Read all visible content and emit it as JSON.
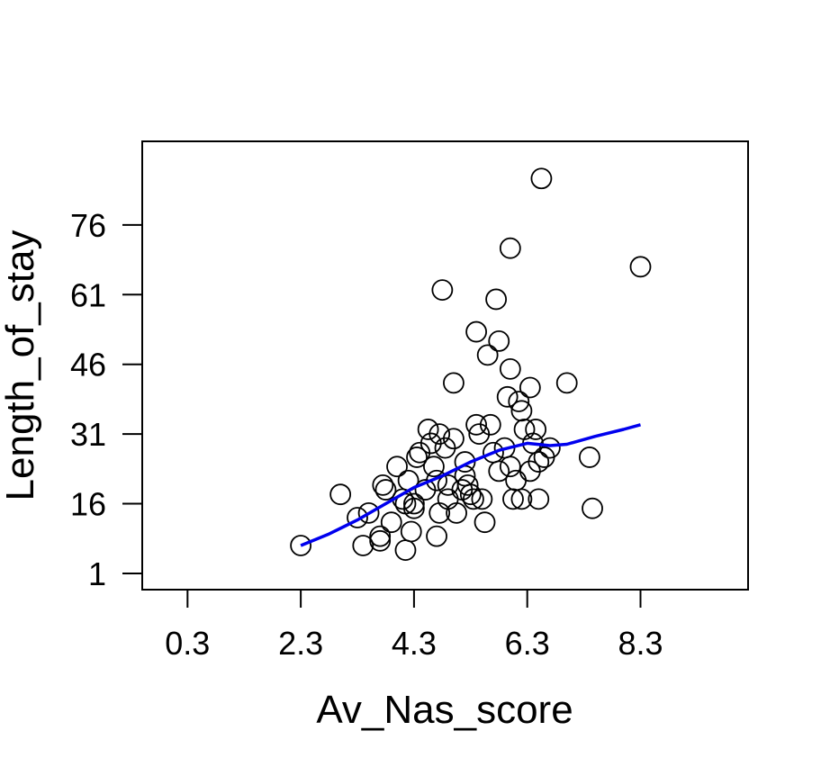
{
  "chart_data": {
    "type": "scatter",
    "xlabel": "Av_Nas_score",
    "ylabel": "Length_of_stay",
    "xlim": [
      -0.5,
      10.2
    ],
    "ylim": [
      -2.5,
      94
    ],
    "x_ticks": [
      0.3,
      2.3,
      4.3,
      6.3,
      8.3
    ],
    "x_tick_labels": [
      "0.3",
      "2.3",
      "4.3",
      "6.3",
      "8.3"
    ],
    "y_ticks": [
      1,
      16,
      31,
      46,
      61,
      76
    ],
    "y_tick_labels": [
      "1",
      "16",
      "31",
      "46",
      "61",
      "76"
    ],
    "grid": false,
    "colors": {
      "points": "#000000",
      "trend": "#0000ee",
      "axes": "#000000"
    },
    "points": [
      {
        "x": 2.3,
        "y": 7
      },
      {
        "x": 3.0,
        "y": 18
      },
      {
        "x": 3.3,
        "y": 13
      },
      {
        "x": 3.4,
        "y": 7
      },
      {
        "x": 3.5,
        "y": 14
      },
      {
        "x": 3.7,
        "y": 9
      },
      {
        "x": 3.7,
        "y": 8
      },
      {
        "x": 3.75,
        "y": 20
      },
      {
        "x": 3.8,
        "y": 19
      },
      {
        "x": 3.9,
        "y": 12
      },
      {
        "x": 4.0,
        "y": 24
      },
      {
        "x": 4.1,
        "y": 17
      },
      {
        "x": 4.15,
        "y": 16
      },
      {
        "x": 4.15,
        "y": 6
      },
      {
        "x": 4.2,
        "y": 21
      },
      {
        "x": 4.25,
        "y": 10
      },
      {
        "x": 4.3,
        "y": 16
      },
      {
        "x": 4.3,
        "y": 15
      },
      {
        "x": 4.35,
        "y": 26
      },
      {
        "x": 4.4,
        "y": 27
      },
      {
        "x": 4.5,
        "y": 19
      },
      {
        "x": 4.55,
        "y": 32
      },
      {
        "x": 4.6,
        "y": 29
      },
      {
        "x": 4.65,
        "y": 24
      },
      {
        "x": 4.7,
        "y": 21
      },
      {
        "x": 4.7,
        "y": 9
      },
      {
        "x": 4.75,
        "y": 14
      },
      {
        "x": 4.75,
        "y": 31
      },
      {
        "x": 4.8,
        "y": 62
      },
      {
        "x": 4.85,
        "y": 28
      },
      {
        "x": 4.9,
        "y": 20
      },
      {
        "x": 4.9,
        "y": 17
      },
      {
        "x": 5.0,
        "y": 30
      },
      {
        "x": 5.0,
        "y": 42
      },
      {
        "x": 5.05,
        "y": 14
      },
      {
        "x": 5.15,
        "y": 19
      },
      {
        "x": 5.2,
        "y": 25
      },
      {
        "x": 5.2,
        "y": 22
      },
      {
        "x": 5.25,
        "y": 20
      },
      {
        "x": 5.3,
        "y": 18
      },
      {
        "x": 5.35,
        "y": 17
      },
      {
        "x": 5.4,
        "y": 33
      },
      {
        "x": 5.4,
        "y": 53
      },
      {
        "x": 5.45,
        "y": 31
      },
      {
        "x": 5.5,
        "y": 17
      },
      {
        "x": 5.55,
        "y": 12
      },
      {
        "x": 5.6,
        "y": 48
      },
      {
        "x": 5.65,
        "y": 33
      },
      {
        "x": 5.7,
        "y": 27
      },
      {
        "x": 5.75,
        "y": 60
      },
      {
        "x": 5.8,
        "y": 51
      },
      {
        "x": 5.8,
        "y": 23
      },
      {
        "x": 5.9,
        "y": 28
      },
      {
        "x": 5.95,
        "y": 39
      },
      {
        "x": 6.0,
        "y": 71
      },
      {
        "x": 6.0,
        "y": 45
      },
      {
        "x": 6.0,
        "y": 24
      },
      {
        "x": 6.05,
        "y": 17
      },
      {
        "x": 6.1,
        "y": 21
      },
      {
        "x": 6.15,
        "y": 38
      },
      {
        "x": 6.2,
        "y": 36
      },
      {
        "x": 6.2,
        "y": 17
      },
      {
        "x": 6.25,
        "y": 32
      },
      {
        "x": 6.35,
        "y": 41
      },
      {
        "x": 6.35,
        "y": 23
      },
      {
        "x": 6.4,
        "y": 29
      },
      {
        "x": 6.45,
        "y": 32
      },
      {
        "x": 6.5,
        "y": 17
      },
      {
        "x": 6.5,
        "y": 25
      },
      {
        "x": 6.55,
        "y": 86
      },
      {
        "x": 6.6,
        "y": 26
      },
      {
        "x": 6.7,
        "y": 28
      },
      {
        "x": 7.0,
        "y": 42
      },
      {
        "x": 7.4,
        "y": 26
      },
      {
        "x": 7.45,
        "y": 15
      },
      {
        "x": 8.3,
        "y": 67
      }
    ],
    "trend_line": {
      "x": [
        2.3,
        2.8,
        3.3,
        3.8,
        4.3,
        4.8,
        5.3,
        5.8,
        6.3,
        6.7,
        7.0,
        7.5,
        8.0,
        8.3
      ],
      "y": [
        7,
        9.5,
        12.5,
        16,
        19.5,
        22,
        25,
        27.5,
        29,
        28.5,
        28.8,
        30.5,
        32,
        33
      ]
    }
  }
}
